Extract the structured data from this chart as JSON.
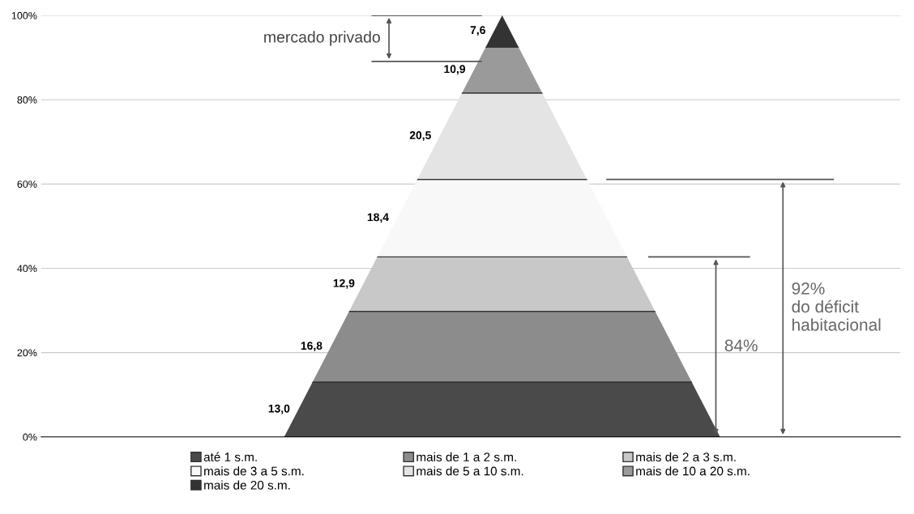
{
  "chart_data": {
    "type": "bar",
    "stacked": true,
    "categories": [
      null
    ],
    "series": [
      {
        "name": "até 1 s.m.",
        "color": "#4a4a4a",
        "values": [
          13.0
        ],
        "value_labels": [
          "13,0"
        ]
      },
      {
        "name": "mais de 1 a 2 s.m.",
        "color": "#8c8c8c",
        "values": [
          16.8
        ],
        "value_labels": [
          "16,8"
        ]
      },
      {
        "name": "mais de 2 a 3 s.m.",
        "color": "#c8c8c8",
        "values": [
          12.9
        ],
        "value_labels": [
          "12,9"
        ]
      },
      {
        "name": "mais de 3 a 5 s.m.",
        "color": "#f8f8f8",
        "values": [
          18.4
        ],
        "value_labels": [
          "18,4"
        ]
      },
      {
        "name": "mais de 5 a 10 s.m.",
        "color": "#e4e4e4",
        "values": [
          20.5
        ],
        "value_labels": [
          "20,5"
        ]
      },
      {
        "name": "mais de 10 a 20 s.m.",
        "color": "#9a9a9a",
        "values": [
          10.9
        ],
        "value_labels": [
          "10,9"
        ]
      },
      {
        "name": "mais de 20 s.m.",
        "color": "#333333",
        "values": [
          7.6
        ],
        "value_labels": [
          "7,6"
        ]
      }
    ],
    "ylim": [
      0,
      100
    ],
    "yticks": [
      {
        "value": 0,
        "label": "0%"
      },
      {
        "value": 20,
        "label": "20%"
      },
      {
        "value": 40,
        "label": "40%"
      },
      {
        "value": 60,
        "label": "60%"
      },
      {
        "value": 80,
        "label": "80%"
      },
      {
        "value": 100,
        "label": "100%"
      }
    ],
    "grid": "y",
    "legend": "bottom",
    "ref_lines": [
      {
        "axis": "y",
        "value": 100
      },
      {
        "axis": "y",
        "value": 89.1
      },
      {
        "axis": "y",
        "value": 61.1
      },
      {
        "axis": "y",
        "value": 42.7
      }
    ],
    "annotations": [
      "mercado privado",
      "92%\ndo déficit\nhabitacional",
      "84%"
    ]
  }
}
